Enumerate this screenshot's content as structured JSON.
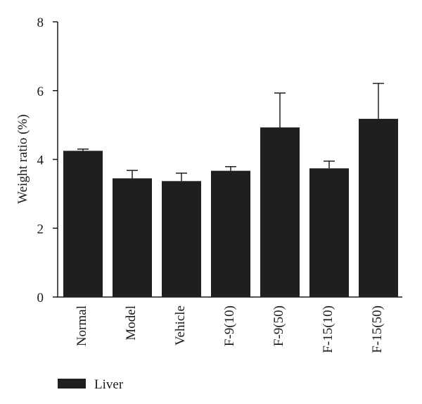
{
  "chart_data": {
    "type": "bar",
    "title": "",
    "xlabel": "",
    "ylabel": "Weight ratio (%)",
    "ylim": [
      0,
      8
    ],
    "yticks": [
      0,
      2,
      4,
      6,
      8
    ],
    "categories": [
      "Normal",
      "Model",
      "Vehicle",
      "F-9(10)",
      "F-9(50)",
      "F-15(10)",
      "F-15(50)"
    ],
    "series": [
      {
        "name": "Liver",
        "values": [
          4.25,
          3.45,
          3.37,
          3.67,
          4.93,
          3.74,
          5.18
        ],
        "error_upper": [
          0.05,
          0.23,
          0.23,
          0.12,
          1.0,
          0.21,
          1.03
        ],
        "color": "#1f1f1f"
      }
    ],
    "legend": {
      "position": "bottom-left",
      "entries": [
        "Liver"
      ]
    },
    "grid": false
  }
}
